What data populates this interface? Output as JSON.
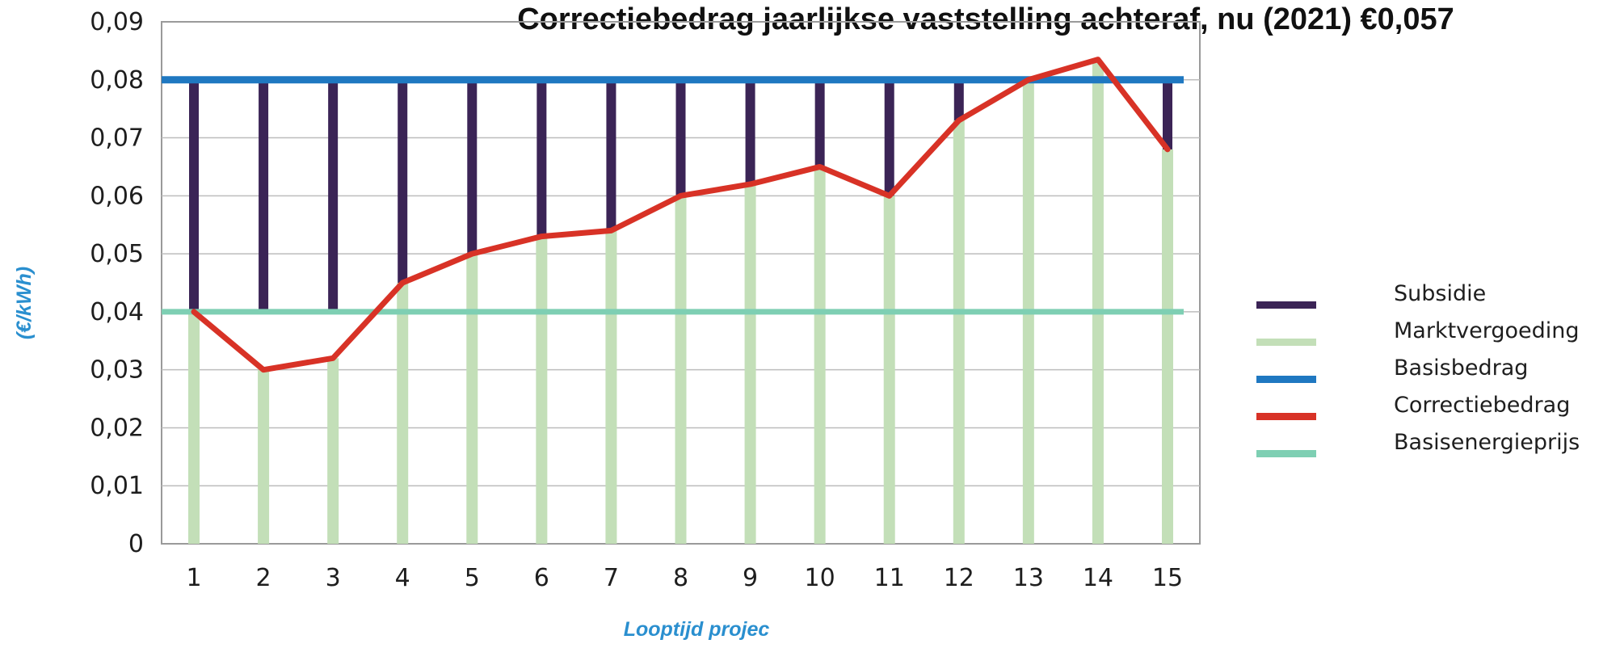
{
  "chart_data": {
    "type": "bar",
    "title": "Correctiebedrag jaarlijkse vaststelling achteraf, nu (2021) €0,057",
    "xlabel": "Looptijd projec",
    "ylabel": "(€/kWh)",
    "categories": [
      "1",
      "2",
      "3",
      "4",
      "5",
      "6",
      "7",
      "8",
      "9",
      "10",
      "11",
      "12",
      "13",
      "14",
      "15"
    ],
    "y_ticks": [
      "0",
      "0,01",
      "0,02",
      "0,03",
      "0,04",
      "0,05",
      "0,06",
      "0,07",
      "0,08",
      "0,09"
    ],
    "ylim": [
      0,
      0.09
    ],
    "grid": true,
    "legend_position": "right",
    "series": [
      {
        "name": "Subsidie",
        "kind": "floating-bar",
        "color": "#3b2456",
        "low": [
          0.04,
          0.04,
          0.04,
          0.045,
          0.05,
          0.053,
          0.054,
          0.06,
          0.062,
          0.065,
          0.06,
          0.073,
          0.08,
          0.08,
          0.068
        ],
        "high": [
          0.08,
          0.08,
          0.08,
          0.08,
          0.08,
          0.08,
          0.08,
          0.08,
          0.08,
          0.08,
          0.08,
          0.08,
          0.08,
          0.08,
          0.08
        ]
      },
      {
        "name": "Marktvergoeding",
        "kind": "bar",
        "color": "#c3dfb8",
        "values": [
          0.04,
          0.03,
          0.032,
          0.045,
          0.05,
          0.053,
          0.054,
          0.06,
          0.062,
          0.065,
          0.06,
          0.073,
          0.08,
          0.083,
          0.068
        ]
      },
      {
        "name": "Basisbedrag",
        "kind": "hline",
        "color": "#1f78c1",
        "value": 0.08
      },
      {
        "name": "Correctiebedrag",
        "kind": "line",
        "color": "#d83226",
        "values": [
          0.04,
          0.03,
          0.032,
          0.045,
          0.05,
          0.053,
          0.054,
          0.06,
          0.062,
          0.065,
          0.06,
          0.073,
          0.08,
          0.0835,
          0.068
        ]
      },
      {
        "name": "Basisenergieprijs",
        "kind": "hline",
        "color": "#7ecfb3",
        "value": 0.04
      }
    ]
  }
}
